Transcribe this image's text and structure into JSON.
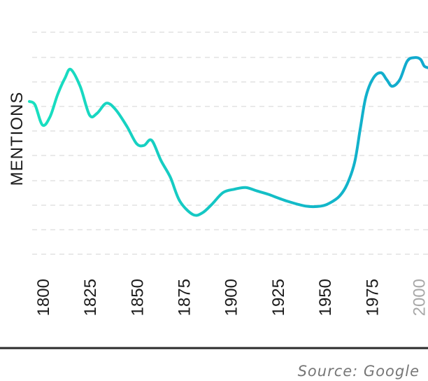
{
  "chart_data": {
    "type": "line",
    "ylabel": "MENTIONS",
    "source": "Source: Google",
    "xlim": [
      1793,
      2005
    ],
    "ylim": [
      0,
      100
    ],
    "x_ticks": [
      "1800",
      "1825",
      "1850",
      "1875",
      "1900",
      "1925",
      "1950",
      "1975",
      "2000"
    ],
    "muted_ticks": [
      "2000"
    ],
    "grid": "horizontal-dashed",
    "line_gradient": [
      "#19e0c0",
      "#11a8cf"
    ],
    "series": [
      {
        "x": [
          1793,
          1796,
          1800,
          1804,
          1808,
          1812,
          1815,
          1820,
          1825,
          1829,
          1834,
          1839,
          1845,
          1850,
          1854,
          1858,
          1863,
          1868,
          1873,
          1880,
          1885,
          1890,
          1896,
          1902,
          1908,
          1914,
          1920,
          1930,
          1940,
          1948,
          1953,
          1958,
          1962,
          1966,
          1969,
          1972,
          1976,
          1980,
          1983,
          1986,
          1990,
          1994,
          1998,
          2001,
          2003,
          2005
        ],
        "y": [
          71,
          69,
          57,
          62,
          75,
          85,
          90,
          80,
          63,
          64,
          70,
          66,
          56,
          46,
          45,
          48,
          36,
          26,
          12,
          4,
          5,
          10,
          17,
          19,
          20,
          18,
          16,
          12,
          9,
          9,
          11,
          15,
          22,
          35,
          55,
          74,
          85,
          88,
          84,
          80,
          84,
          95,
          97,
          96,
          92,
          91
        ]
      }
    ]
  }
}
